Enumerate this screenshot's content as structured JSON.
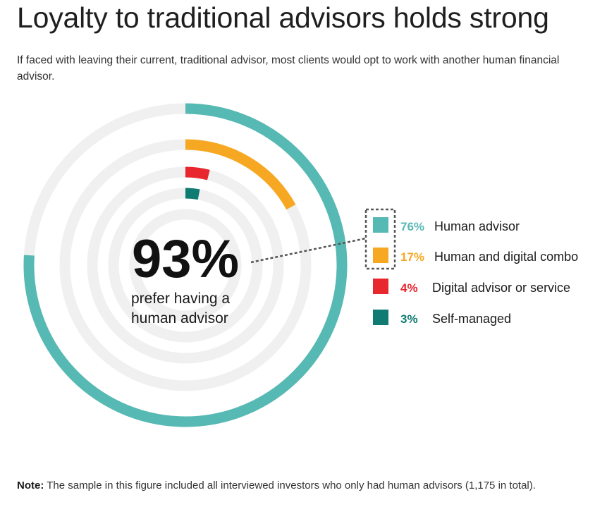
{
  "page": {
    "title": "Loyalty to traditional advisors holds strong",
    "subtitle": "If faced with leaving their current, traditional advisor, most clients would opt to work with another human financial advisor.",
    "note_label": "Note:",
    "note_text": " The sample in this figure included all interviewed investors who only had human advisors (1,175 in total)."
  },
  "chart_data": {
    "type": "radial-bar",
    "title": "",
    "center_value": "93%",
    "center_text": [
      "prefer having a",
      "human advisor"
    ],
    "unit": "%",
    "max": 100,
    "track_color": "#f0f0f0",
    "categories": [
      "Human advisor",
      "Human and digital combo",
      "Digital advisor or service",
      "Self-managed"
    ],
    "values": [
      76,
      17,
      4,
      3
    ],
    "labels": [
      "76%",
      "17%",
      "4%",
      "3%"
    ],
    "colors": [
      "#57b9b4",
      "#f7a823",
      "#e8262d",
      "#0f7b72"
    ],
    "label_colors": [
      "#57b9b4",
      "#f7a823",
      "#e8262d",
      "#0f7b72"
    ],
    "legend_position": "right",
    "highlighted_group": [
      "Human advisor",
      "Human and digital combo"
    ]
  }
}
